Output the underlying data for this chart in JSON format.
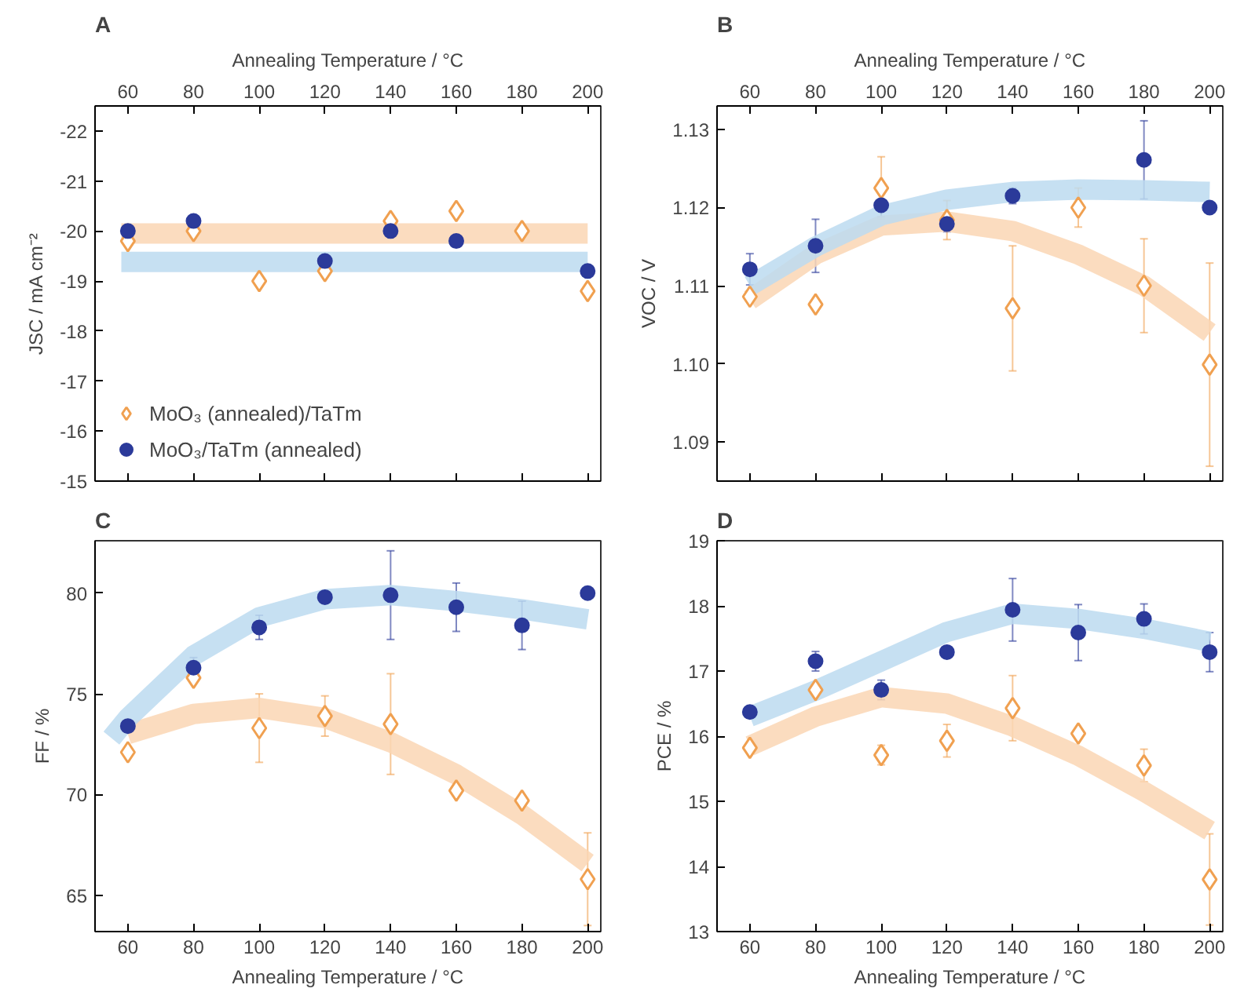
{
  "chart_data": [
    {
      "type": "scatter",
      "title": "A",
      "xlabel": "Annealing Temperature / °C",
      "ylabel": "JSC / mA cm⁻²",
      "xlim": [
        50,
        204
      ],
      "xticks": [
        60,
        80,
        100,
        120,
        140,
        160,
        180,
        200
      ],
      "ylim": [
        -15,
        -22.5
      ],
      "yticks": [
        -22,
        -21,
        -20,
        -19,
        -18,
        -17,
        -16,
        -15
      ],
      "legend": "bottom left",
      "x": [
        60,
        80,
        100,
        120,
        140,
        160,
        180,
        200
      ],
      "series": [
        {
          "type": "line",
          "color": "#fad6b4",
          "x": [
            58,
            200
          ],
          "values": [
            -19.95,
            -19.95
          ]
        },
        {
          "type": "line",
          "color": "#bcdaf0",
          "x": [
            58,
            200
          ],
          "values": [
            -19.38,
            -19.38
          ]
        },
        {
          "name": "MoO₃ (annealed)/TaTm",
          "color": "#f0a050",
          "marker": "diamond",
          "values": [
            -19.8,
            -20.0,
            -19.0,
            -19.2,
            -20.2,
            -20.4,
            -20.0,
            -18.8
          ]
        },
        {
          "name": "MoO₃/TaTm (annealed)",
          "color": "#2b3a9a",
          "marker": "circle",
          "values": [
            -20.0,
            -20.2,
            null,
            -19.4,
            -20.0,
            -19.8,
            null,
            -19.2
          ]
        }
      ]
    },
    {
      "type": "scatter",
      "title": "B",
      "xlabel": "Annealing Temperature / °C",
      "ylabel": "VOC / V",
      "xlim": [
        50,
        204
      ],
      "xticks": [
        60,
        80,
        100,
        120,
        140,
        160,
        180,
        200
      ],
      "ylim": [
        1.085,
        1.133
      ],
      "yticks": [
        1.09,
        {
          "value": 1.1,
          "label": "1.10"
        },
        1.11,
        1.12,
        1.13
      ],
      "x": [
        60,
        80,
        100,
        120,
        140,
        160,
        180,
        200
      ],
      "series": [
        {
          "type": "line",
          "color": "#fad6b4",
          "x": [
            60,
            80,
            100,
            120,
            140,
            160,
            180,
            200
          ],
          "values": [
            1.1082,
            1.114,
            1.1177,
            1.1182,
            1.117,
            1.114,
            1.11,
            1.104
          ]
        },
        {
          "type": "line",
          "color": "#bcdaf0",
          "x": [
            60,
            80,
            100,
            120,
            140,
            160,
            180,
            200
          ],
          "values": [
            1.11,
            1.115,
            1.119,
            1.121,
            1.122,
            1.1223,
            1.1222,
            1.122
          ]
        },
        {
          "color": "#f0a050",
          "marker": "diamond",
          "values": [
            1.1086,
            1.1076,
            1.1225,
            1.1184,
            1.1071,
            1.12,
            1.11,
            1.0999
          ],
          "errors": [
            null,
            null,
            0.004,
            0.0025,
            0.008,
            0.0025,
            0.006,
            0.013
          ]
        },
        {
          "color": "#2b3a9a",
          "marker": "circle",
          "values": [
            1.1121,
            1.1151,
            1.1203,
            1.1179,
            1.1215,
            null,
            1.1261,
            1.12
          ],
          "errors": [
            0.002,
            0.0034,
            0.0015,
            0.001,
            0.001,
            null,
            0.005,
            null
          ]
        }
      ]
    },
    {
      "type": "scatter",
      "title": "C",
      "xlabel": "Annealing Temperature / °C",
      "ylabel": "FF / %",
      "xlim": [
        50,
        204
      ],
      "xticks": [
        60,
        80,
        100,
        120,
        140,
        160,
        180,
        200
      ],
      "ylim": [
        63.2,
        82.6
      ],
      "yticks": [
        65,
        70,
        75,
        80
      ],
      "x": [
        60,
        80,
        100,
        120,
        140,
        160,
        180,
        200
      ],
      "series": [
        {
          "type": "line",
          "color": "#fad6b4",
          "x": [
            60,
            80,
            100,
            120,
            140,
            160,
            180,
            200
          ],
          "values": [
            73.0,
            74.0,
            74.3,
            73.8,
            72.6,
            71.0,
            69.0,
            66.6
          ]
        },
        {
          "type": "line",
          "color": "#bcdaf0",
          "x": [
            55,
            60,
            80,
            100,
            120,
            140,
            160,
            180,
            200
          ],
          "values": [
            72.8,
            73.8,
            76.9,
            78.8,
            79.7,
            79.9,
            79.6,
            79.2,
            78.7
          ]
        },
        {
          "color": "#f0a050",
          "marker": "diamond",
          "values": [
            72.1,
            75.8,
            73.3,
            73.9,
            73.5,
            70.2,
            69.7,
            65.8
          ],
          "errors": [
            null,
            null,
            1.7,
            1.0,
            2.5,
            null,
            null,
            2.3
          ]
        },
        {
          "color": "#2b3a9a",
          "marker": "circle",
          "values": [
            73.4,
            76.3,
            78.3,
            79.8,
            79.9,
            79.3,
            78.4,
            80.0
          ],
          "errors": [
            null,
            0.5,
            0.6,
            null,
            2.2,
            1.2,
            1.2,
            null
          ]
        }
      ]
    },
    {
      "type": "scatter",
      "title": "D",
      "xlabel": "Annealing Temperature / °C",
      "ylabel": "PCE / %",
      "xlim": [
        50,
        204
      ],
      "xticks": [
        60,
        80,
        100,
        120,
        140,
        160,
        180,
        200
      ],
      "ylim": [
        13,
        19
      ],
      "yticks": [
        13,
        14,
        15,
        16,
        17,
        18,
        19
      ],
      "x": [
        60,
        80,
        100,
        120,
        140,
        160,
        180,
        200
      ],
      "series": [
        {
          "type": "line",
          "color": "#fad6b4",
          "x": [
            60,
            80,
            100,
            120,
            140,
            160,
            180,
            200
          ],
          "values": [
            15.85,
            16.3,
            16.6,
            16.5,
            16.15,
            15.7,
            15.15,
            14.55
          ]
        },
        {
          "type": "line",
          "color": "#bcdaf0",
          "x": [
            60,
            80,
            100,
            120,
            140,
            160,
            180,
            200
          ],
          "values": [
            16.3,
            16.7,
            17.15,
            17.6,
            17.88,
            17.8,
            17.65,
            17.45
          ]
        },
        {
          "color": "#f0a050",
          "marker": "diamond",
          "values": [
            15.82,
            16.71,
            15.71,
            15.93,
            16.43,
            16.04,
            15.55,
            13.8
          ],
          "errors": [
            null,
            null,
            0.15,
            0.25,
            0.5,
            null,
            0.25,
            0.7
          ]
        },
        {
          "color": "#2b3a9a",
          "marker": "circle",
          "values": [
            16.37,
            17.15,
            16.71,
            17.29,
            17.94,
            17.59,
            17.8,
            17.29
          ],
          "errors": [
            null,
            0.15,
            0.15,
            null,
            0.48,
            0.43,
            0.23,
            0.3
          ]
        }
      ]
    }
  ]
}
